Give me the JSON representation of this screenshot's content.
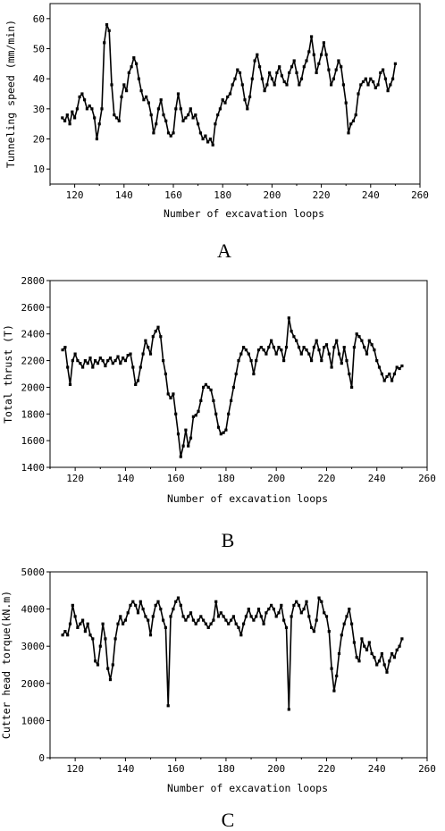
{
  "chart_data": [
    {
      "type": "scatter",
      "panel_label": "A",
      "xlabel": "Number of excavation loops",
      "ylabel": "Tunneling speed (mm/min)",
      "xlim": [
        110,
        260
      ],
      "ylim": [
        5,
        65
      ],
      "xticks": [
        120,
        140,
        160,
        180,
        200,
        220,
        240,
        260
      ],
      "yticks": [
        10,
        20,
        30,
        40,
        50,
        60
      ],
      "series": [
        {
          "x": [
            115,
            116,
            117,
            118,
            119,
            120,
            121,
            122,
            123,
            124,
            125,
            126,
            127,
            128,
            129,
            130,
            131,
            132,
            133,
            134,
            135,
            136,
            137,
            138,
            139,
            140,
            141,
            142,
            143,
            144,
            145,
            146,
            147,
            148,
            149,
            150,
            151,
            152,
            153,
            154,
            155,
            156,
            157,
            158,
            159,
            160,
            161,
            162,
            163,
            164,
            165,
            166,
            167,
            168,
            169,
            170,
            171,
            172,
            173,
            174,
            175,
            176,
            177,
            178,
            179,
            180,
            181,
            182,
            183,
            184,
            185,
            186,
            187,
            188,
            189,
            190,
            191,
            192,
            193,
            194,
            195,
            196,
            197,
            198,
            199,
            200,
            201,
            202,
            203,
            204,
            205,
            206,
            207,
            208,
            209,
            210,
            211,
            212,
            213,
            214,
            215,
            216,
            217,
            218,
            219,
            220,
            221,
            222,
            223,
            224,
            225,
            226,
            227,
            228,
            229,
            230,
            231,
            232,
            233,
            234,
            235,
            236,
            237,
            238,
            239,
            240,
            241,
            242,
            243,
            244,
            245,
            246,
            247,
            248,
            249,
            250
          ],
          "y": [
            27,
            26,
            28,
            25,
            29,
            27,
            30,
            34,
            35,
            33,
            30,
            31,
            30,
            27,
            20,
            25,
            30,
            52,
            58,
            56,
            38,
            28,
            27,
            26,
            34,
            38,
            36,
            42,
            44,
            47,
            45,
            40,
            36,
            33,
            34,
            32,
            28,
            22,
            25,
            30,
            33,
            28,
            26,
            22,
            21,
            22,
            30,
            35,
            30,
            26,
            27,
            28,
            30,
            27,
            28,
            25,
            22,
            20,
            21,
            19,
            20,
            18,
            25,
            28,
            30,
            33,
            32,
            34,
            35,
            38,
            40,
            43,
            42,
            38,
            33,
            30,
            34,
            40,
            46,
            48,
            44,
            40,
            36,
            38,
            42,
            40,
            38,
            42,
            44,
            41,
            39,
            38,
            42,
            44,
            46,
            42,
            38,
            40,
            44,
            46,
            49,
            54,
            48,
            42,
            45,
            48,
            52,
            48,
            43,
            38,
            40,
            43,
            46,
            44,
            38,
            32,
            22,
            25,
            26,
            28,
            35,
            38,
            39,
            40,
            38,
            40,
            39,
            37,
            38,
            42,
            43,
            40,
            36,
            38,
            40,
            45
          ]
        }
      ]
    },
    {
      "type": "scatter",
      "panel_label": "B",
      "xlabel": "Number of excavation loops",
      "ylabel": "Total thrust (T)",
      "xlim": [
        110,
        260
      ],
      "ylim": [
        1400,
        2800
      ],
      "xticks": [
        120,
        140,
        160,
        180,
        200,
        220,
        240,
        260
      ],
      "yticks": [
        1400,
        1600,
        1800,
        2000,
        2200,
        2400,
        2600,
        2800
      ],
      "series": [
        {
          "x": [
            115,
            116,
            117,
            118,
            119,
            120,
            121,
            122,
            123,
            124,
            125,
            126,
            127,
            128,
            129,
            130,
            131,
            132,
            133,
            134,
            135,
            136,
            137,
            138,
            139,
            140,
            141,
            142,
            143,
            144,
            145,
            146,
            147,
            148,
            149,
            150,
            151,
            152,
            153,
            154,
            155,
            156,
            157,
            158,
            159,
            160,
            161,
            162,
            163,
            164,
            165,
            166,
            167,
            168,
            169,
            170,
            171,
            172,
            173,
            174,
            175,
            176,
            177,
            178,
            179,
            180,
            181,
            182,
            183,
            184,
            185,
            186,
            187,
            188,
            189,
            190,
            191,
            192,
            193,
            194,
            195,
            196,
            197,
            198,
            199,
            200,
            201,
            202,
            203,
            204,
            205,
            206,
            207,
            208,
            209,
            210,
            211,
            212,
            213,
            214,
            215,
            216,
            217,
            218,
            219,
            220,
            221,
            222,
            223,
            224,
            225,
            226,
            227,
            228,
            229,
            230,
            231,
            232,
            233,
            234,
            235,
            236,
            237,
            238,
            239,
            240,
            241,
            242,
            243,
            244,
            245,
            246,
            247,
            248,
            249,
            250
          ],
          "y": [
            2280,
            2300,
            2150,
            2020,
            2200,
            2250,
            2200,
            2180,
            2150,
            2200,
            2180,
            2220,
            2150,
            2200,
            2180,
            2220,
            2200,
            2160,
            2200,
            2220,
            2180,
            2200,
            2230,
            2180,
            2220,
            2200,
            2240,
            2250,
            2150,
            2020,
            2050,
            2150,
            2250,
            2350,
            2300,
            2250,
            2380,
            2420,
            2450,
            2380,
            2200,
            2100,
            1950,
            1920,
            1950,
            1800,
            1650,
            1480,
            1560,
            1680,
            1560,
            1620,
            1780,
            1790,
            1820,
            1900,
            2000,
            2020,
            2000,
            1980,
            1900,
            1800,
            1700,
            1650,
            1660,
            1680,
            1800,
            1900,
            2000,
            2100,
            2200,
            2250,
            2300,
            2280,
            2250,
            2200,
            2100,
            2200,
            2280,
            2300,
            2280,
            2250,
            2300,
            2350,
            2300,
            2250,
            2300,
            2280,
            2200,
            2300,
            2520,
            2420,
            2380,
            2350,
            2300,
            2250,
            2300,
            2280,
            2250,
            2200,
            2300,
            2350,
            2280,
            2200,
            2300,
            2320,
            2250,
            2150,
            2300,
            2350,
            2250,
            2180,
            2300,
            2200,
            2100,
            2000,
            2300,
            2400,
            2380,
            2350,
            2300,
            2250,
            2350,
            2320,
            2280,
            2200,
            2150,
            2100,
            2050,
            2080,
            2100,
            2050,
            2100,
            2150,
            2140,
            2160
          ]
        }
      ]
    },
    {
      "type": "scatter",
      "panel_label": "C",
      "xlabel": "Number of excavation loops",
      "ylabel": "Cutter head torque(kN.m)",
      "xlim": [
        110,
        260
      ],
      "ylim": [
        0,
        5000
      ],
      "xticks": [
        120,
        140,
        160,
        180,
        200,
        220,
        240,
        260
      ],
      "yticks": [
        0,
        1000,
        2000,
        3000,
        4000,
        5000
      ],
      "series": [
        {
          "x": [
            115,
            116,
            117,
            118,
            119,
            120,
            121,
            122,
            123,
            124,
            125,
            126,
            127,
            128,
            129,
            130,
            131,
            132,
            133,
            134,
            135,
            136,
            137,
            138,
            139,
            140,
            141,
            142,
            143,
            144,
            145,
            146,
            147,
            148,
            149,
            150,
            151,
            152,
            153,
            154,
            155,
            156,
            157,
            158,
            159,
            160,
            161,
            162,
            163,
            164,
            165,
            166,
            167,
            168,
            169,
            170,
            171,
            172,
            173,
            174,
            175,
            176,
            177,
            178,
            179,
            180,
            181,
            182,
            183,
            184,
            185,
            186,
            187,
            188,
            189,
            190,
            191,
            192,
            193,
            194,
            195,
            196,
            197,
            198,
            199,
            200,
            201,
            202,
            203,
            204,
            205,
            206,
            207,
            208,
            209,
            210,
            211,
            212,
            213,
            214,
            215,
            216,
            217,
            218,
            219,
            220,
            221,
            222,
            223,
            224,
            225,
            226,
            227,
            228,
            229,
            230,
            231,
            232,
            233,
            234,
            235,
            236,
            237,
            238,
            239,
            240,
            241,
            242,
            243,
            244,
            245,
            246,
            247,
            248,
            249,
            250
          ],
          "y": [
            3300,
            3400,
            3300,
            3600,
            4100,
            3800,
            3500,
            3600,
            3700,
            3400,
            3600,
            3300,
            3200,
            2600,
            2500,
            3000,
            3600,
            3200,
            2400,
            2100,
            2500,
            3200,
            3600,
            3800,
            3600,
            3700,
            3900,
            4100,
            4200,
            4100,
            3900,
            4200,
            4000,
            3800,
            3700,
            3300,
            3800,
            4100,
            4200,
            4000,
            3700,
            3500,
            1400,
            3800,
            4000,
            4200,
            4300,
            4100,
            3800,
            3700,
            3800,
            3900,
            3700,
            3600,
            3700,
            3800,
            3700,
            3600,
            3500,
            3600,
            3700,
            4200,
            3800,
            3900,
            3800,
            3700,
            3600,
            3700,
            3800,
            3600,
            3500,
            3300,
            3600,
            3800,
            4000,
            3800,
            3700,
            3800,
            4000,
            3800,
            3600,
            3900,
            4000,
            4100,
            4000,
            3800,
            3900,
            4100,
            3700,
            3500,
            1300,
            3800,
            4100,
            4200,
            4100,
            3900,
            4000,
            4200,
            3800,
            3500,
            3400,
            3700,
            4300,
            4200,
            3900,
            3800,
            3400,
            2400,
            1800,
            2200,
            2800,
            3300,
            3600,
            3800,
            4000,
            3600,
            3100,
            2700,
            2600,
            3200,
            3000,
            2900,
            3100,
            2800,
            2700,
            2500,
            2600,
            2800,
            2500,
            2300,
            2600,
            2800,
            2700,
            2900,
            3000,
            3200
          ]
        }
      ]
    }
  ]
}
